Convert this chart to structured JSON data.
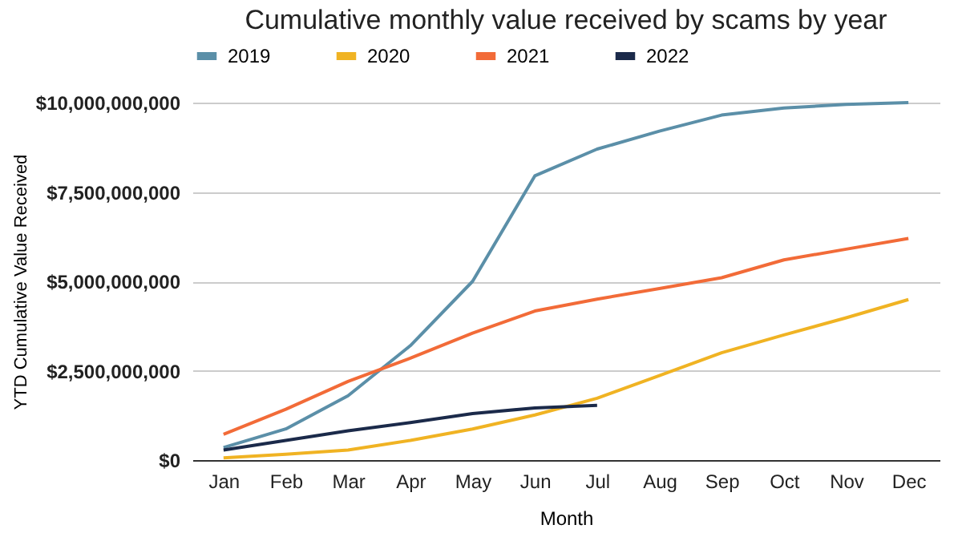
{
  "chart_data": {
    "type": "line",
    "title": "Cumulative monthly value received by scams by year",
    "xlabel": "Month",
    "ylabel": "YTD Cumulative Value Received",
    "categories": [
      "Jan",
      "Feb",
      "Mar",
      "Apr",
      "May",
      "Jun",
      "Jul",
      "Aug",
      "Sep",
      "Oct",
      "Nov",
      "Dec"
    ],
    "series": [
      {
        "name": "2019",
        "color": "#5b8fa8",
        "values": [
          350000000,
          870000000,
          1800000000,
          3200000000,
          5000000000,
          7950000000,
          8700000000,
          9200000000,
          9650000000,
          9850000000,
          9950000000,
          10000000000
        ]
      },
      {
        "name": "2020",
        "color": "#f0b323",
        "values": [
          60000000,
          160000000,
          280000000,
          550000000,
          870000000,
          1260000000,
          1730000000,
          2360000000,
          3000000000,
          3500000000,
          3980000000,
          4490000000
        ]
      },
      {
        "name": "2021",
        "color": "#f26b38",
        "values": [
          720000000,
          1420000000,
          2200000000,
          2850000000,
          3550000000,
          4170000000,
          4500000000,
          4800000000,
          5100000000,
          5600000000,
          5900000000,
          6200000000
        ]
      },
      {
        "name": "2022",
        "color": "#1b2a4a",
        "values": [
          280000000,
          550000000,
          820000000,
          1050000000,
          1300000000,
          1460000000,
          1530000000,
          null,
          null,
          null,
          null,
          null
        ]
      }
    ],
    "ylim": [
      0,
      10000000000
    ],
    "yticks": [
      {
        "value": 0,
        "label": "$0"
      },
      {
        "value": 2500000000,
        "label": "$2,500,000,000"
      },
      {
        "value": 5000000000,
        "label": "$5,000,000,000"
      },
      {
        "value": 7500000000,
        "label": "$7,500,000,000"
      },
      {
        "value": 10000000000,
        "label": "$10,000,000,000"
      }
    ],
    "grid": "y",
    "legend": "top",
    "marker": "none",
    "line_style": "solid"
  }
}
